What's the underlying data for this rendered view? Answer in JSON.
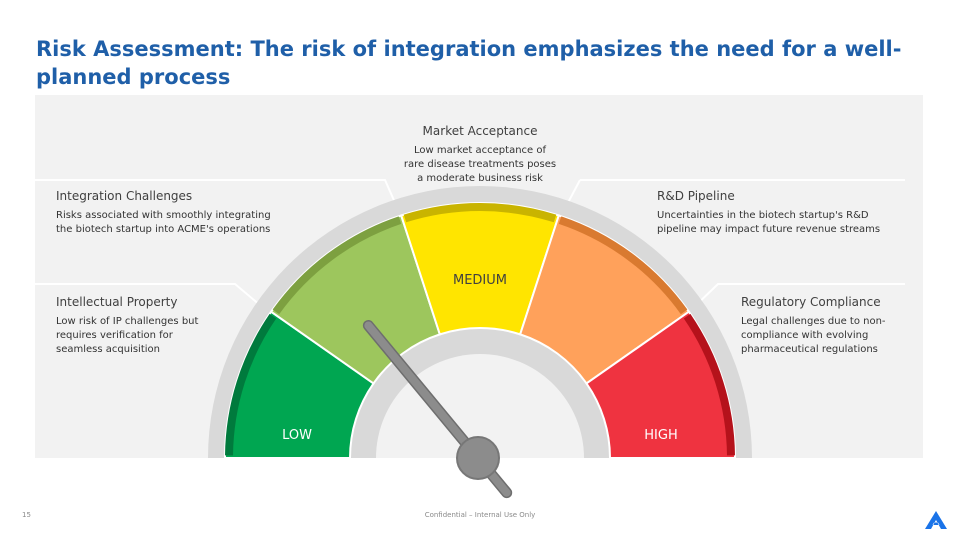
{
  "title": "Risk Assessment: The risk of integration emphasizes the need for a well-planned process",
  "gauge": {
    "segments": [
      {
        "label": "LOW",
        "color": "#00a651",
        "edge": "#007a3d",
        "text_color": "#ffffff"
      },
      {
        "label": "",
        "color": "#9dc65d",
        "edge": "#7da040",
        "text_color": "#ffffff"
      },
      {
        "label": "MEDIUM",
        "color": "#ffe500",
        "edge": "#c9b400",
        "text_color": "#404040"
      },
      {
        "label": "",
        "color": "#ffa15b",
        "edge": "#d97a30",
        "text_color": "#ffffff"
      },
      {
        "label": "HIGH",
        "color": "#ef3340",
        "edge": "#b5121b",
        "text_color": "#ffffff"
      }
    ],
    "needle_value": 0.28,
    "needle_color": "#8c8c8c"
  },
  "callouts": {
    "intellectual_property": {
      "title": "Intellectual Property",
      "lines": [
        "Low risk of IP challenges but",
        "requires verification for",
        "seamless acquisition"
      ]
    },
    "integration_challenges": {
      "title": "Integration Challenges",
      "lines": [
        "Risks associated with smoothly integrating",
        "the biotech startup into ACME's operations"
      ]
    },
    "market_acceptance": {
      "title": "Market Acceptance",
      "lines": [
        "Low market acceptance of",
        "rare disease treatments poses",
        "a moderate business risk"
      ]
    },
    "rd_pipeline": {
      "title": "R&D Pipeline",
      "lines": [
        "Uncertainties in the biotech startup's R&D",
        "pipeline may impact future revenue streams"
      ]
    },
    "regulatory_compliance": {
      "title": "Regulatory Compliance",
      "lines": [
        "Legal challenges due to non-",
        "compliance with evolving",
        "pharmaceutical regulations"
      ]
    }
  },
  "footer": {
    "page_number": "15",
    "confidential": "Confidential – Internal Use Only"
  },
  "logo": {
    "icon": "company-logo-icon",
    "color": "#1a73e8"
  }
}
